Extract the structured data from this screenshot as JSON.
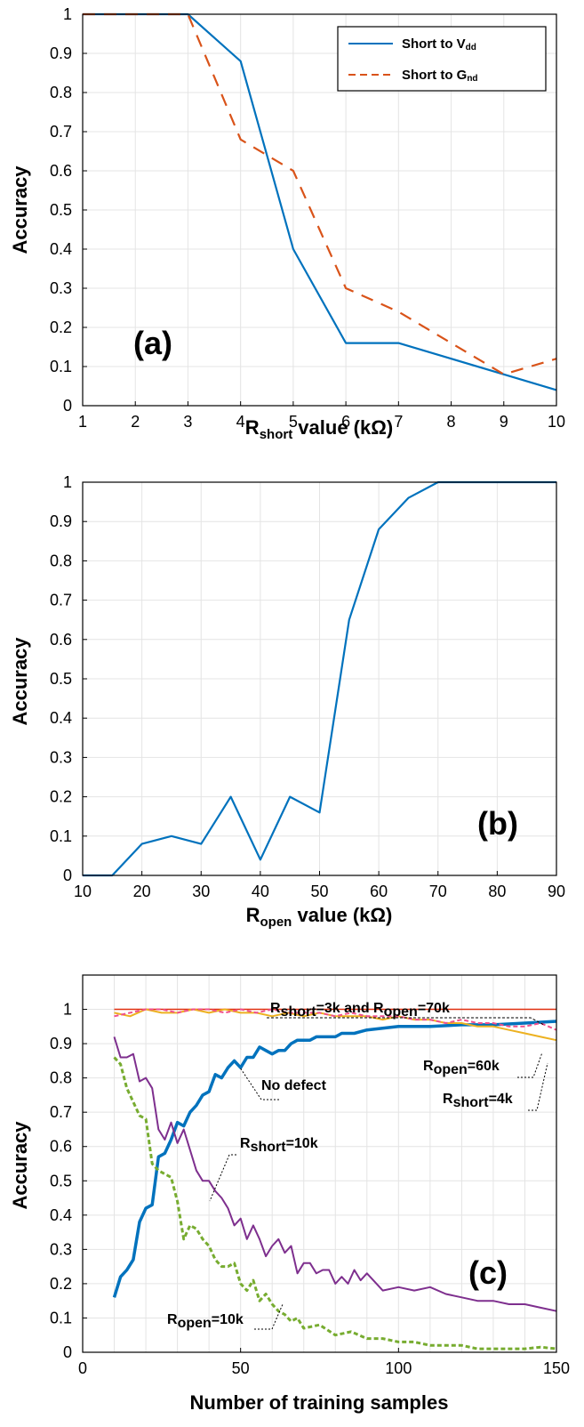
{
  "colors": {
    "blue": "#0072BD",
    "orange": "#D95319",
    "purple": "#7E2F8E",
    "green": "#77AC30",
    "yellow": "#EDB120",
    "pink": "#F0508C",
    "red": "#E03010"
  },
  "chart_data": [
    {
      "type": "line",
      "tag": "(a)",
      "xlabel": {
        "main": "R",
        "sub": "short",
        "rest": " value (kΩ)"
      },
      "ylabel": "Accuracy",
      "xlim": [
        1,
        10
      ],
      "ylim": [
        0,
        1
      ],
      "xticks": [
        "1",
        "2",
        "3",
        "4",
        "5",
        "6",
        "7",
        "8",
        "9",
        "10"
      ],
      "yticks": [
        "0",
        "0.1",
        "0.2",
        "0.3",
        "0.4",
        "0.5",
        "0.6",
        "0.7",
        "0.8",
        "0.9",
        "1"
      ],
      "grid": true,
      "legend_position": "top-right",
      "series": [
        {
          "name_main": "Short to V",
          "name_sub": "dd",
          "color": "#0072BD",
          "dash": "solid",
          "x": [
            1,
            2,
            3,
            4,
            5,
            6,
            7,
            8,
            9,
            10
          ],
          "y": [
            1,
            1,
            1,
            0.88,
            0.4,
            0.16,
            0.16,
            0.12,
            0.08,
            0.04
          ]
        },
        {
          "name_main": "Short to G",
          "name_sub": "nd",
          "color": "#D95319",
          "dash": "dashed",
          "x": [
            1,
            2,
            3,
            4,
            5,
            6,
            7,
            8,
            9,
            10
          ],
          "y": [
            1,
            1,
            1,
            0.68,
            0.6,
            0.3,
            0.24,
            0.16,
            0.08,
            0.12
          ]
        }
      ]
    },
    {
      "type": "line",
      "tag": "(b)",
      "xlabel": {
        "main": "R",
        "sub": "open",
        "rest": " value (kΩ)"
      },
      "ylabel": "Accuracy",
      "xlim": [
        10,
        90
      ],
      "ylim": [
        0,
        1
      ],
      "xticks": [
        "10",
        "20",
        "30",
        "40",
        "50",
        "60",
        "70",
        "80",
        "90"
      ],
      "yticks": [
        "0",
        "0.1",
        "0.2",
        "0.3",
        "0.4",
        "0.5",
        "0.6",
        "0.7",
        "0.8",
        "0.9",
        "1"
      ],
      "grid": true,
      "series": [
        {
          "color": "#0072BD",
          "dash": "solid",
          "x": [
            10,
            15,
            20,
            25,
            30,
            35,
            40,
            45,
            50,
            55,
            60,
            65,
            70,
            75,
            80,
            85,
            90
          ],
          "y": [
            0,
            0,
            0.08,
            0.1,
            0.08,
            0.2,
            0.04,
            0.2,
            0.16,
            0.65,
            0.88,
            0.96,
            1,
            1,
            1,
            1,
            1
          ]
        }
      ]
    },
    {
      "type": "line",
      "tag": "(c)",
      "xlabel": "Number of training samples",
      "ylabel": "Accuracy",
      "xlim": [
        0,
        150
      ],
      "ylim": [
        0,
        1.1
      ],
      "xticks": [
        "0",
        "50",
        "100",
        "150"
      ],
      "yticks": [
        "0",
        "0.1",
        "0.2",
        "0.3",
        "0.4",
        "0.5",
        "0.6",
        "0.7",
        "0.8",
        "0.9",
        "1"
      ],
      "grid": true,
      "series": [
        {
          "label": "No defect",
          "color": "#0072BD",
          "dash": "solid",
          "width": 3.5,
          "x": [
            10,
            12,
            14,
            16,
            18,
            20,
            22,
            24,
            26,
            28,
            30,
            32,
            34,
            36,
            38,
            40,
            42,
            44,
            46,
            48,
            50,
            52,
            54,
            56,
            58,
            60,
            62,
            64,
            66,
            68,
            70,
            72,
            74,
            76,
            78,
            80,
            82,
            84,
            86,
            88,
            90,
            95,
            100,
            110,
            120,
            130,
            140,
            150
          ],
          "y": [
            0.16,
            0.22,
            0.24,
            0.27,
            0.38,
            0.42,
            0.43,
            0.57,
            0.58,
            0.62,
            0.67,
            0.66,
            0.7,
            0.72,
            0.75,
            0.76,
            0.81,
            0.8,
            0.83,
            0.85,
            0.83,
            0.86,
            0.86,
            0.89,
            0.88,
            0.87,
            0.88,
            0.88,
            0.9,
            0.91,
            0.91,
            0.91,
            0.92,
            0.92,
            0.92,
            0.92,
            0.93,
            0.93,
            0.93,
            0.935,
            0.94,
            0.945,
            0.95,
            0.95,
            0.955,
            0.955,
            0.96,
            0.965
          ]
        },
        {
          "label": "Rshort=10k",
          "color": "#7E2F8E",
          "dash": "solid",
          "width": 2,
          "x": [
            10,
            12,
            14,
            16,
            18,
            20,
            22,
            24,
            26,
            28,
            30,
            32,
            34,
            36,
            38,
            40,
            42,
            44,
            46,
            48,
            50,
            52,
            54,
            56,
            58,
            60,
            62,
            64,
            66,
            68,
            70,
            72,
            74,
            76,
            78,
            80,
            82,
            84,
            86,
            88,
            90,
            95,
            100,
            105,
            110,
            115,
            120,
            125,
            130,
            135,
            140,
            145,
            150
          ],
          "y": [
            0.92,
            0.86,
            0.86,
            0.87,
            0.79,
            0.8,
            0.77,
            0.65,
            0.62,
            0.67,
            0.61,
            0.65,
            0.59,
            0.53,
            0.5,
            0.5,
            0.47,
            0.45,
            0.42,
            0.37,
            0.39,
            0.33,
            0.37,
            0.33,
            0.28,
            0.31,
            0.33,
            0.29,
            0.31,
            0.23,
            0.26,
            0.26,
            0.23,
            0.24,
            0.24,
            0.2,
            0.22,
            0.2,
            0.24,
            0.21,
            0.23,
            0.18,
            0.19,
            0.18,
            0.19,
            0.17,
            0.16,
            0.15,
            0.15,
            0.14,
            0.14,
            0.13,
            0.12
          ]
        },
        {
          "label": "Ropen=10k",
          "color": "#77AC30",
          "dash": "dashed",
          "width": 3,
          "x": [
            10,
            12,
            14,
            16,
            18,
            20,
            22,
            24,
            26,
            28,
            30,
            32,
            34,
            36,
            38,
            40,
            42,
            44,
            46,
            48,
            50,
            52,
            54,
            56,
            58,
            60,
            62,
            64,
            66,
            68,
            70,
            75,
            80,
            85,
            90,
            95,
            100,
            105,
            110,
            115,
            120,
            125,
            130,
            135,
            140,
            145,
            150
          ],
          "y": [
            0.86,
            0.84,
            0.77,
            0.73,
            0.69,
            0.68,
            0.55,
            0.53,
            0.52,
            0.51,
            0.44,
            0.33,
            0.37,
            0.36,
            0.33,
            0.31,
            0.27,
            0.25,
            0.25,
            0.26,
            0.2,
            0.18,
            0.21,
            0.15,
            0.17,
            0.14,
            0.12,
            0.11,
            0.09,
            0.1,
            0.07,
            0.08,
            0.05,
            0.06,
            0.04,
            0.04,
            0.03,
            0.03,
            0.02,
            0.02,
            0.02,
            0.01,
            0.01,
            0.01,
            0.01,
            0.015,
            0.01
          ]
        },
        {
          "label": "Rshort=3k and Ropen=70k",
          "color": "#E03010",
          "dash": "solid",
          "width": 1.5,
          "x": [
            10,
            150
          ],
          "y": [
            1,
            1
          ]
        },
        {
          "label": "Ropen=60k",
          "color": "#EDB120",
          "dash": "solid",
          "width": 2,
          "x": [
            10,
            15,
            20,
            25,
            30,
            35,
            40,
            45,
            50,
            55,
            60,
            65,
            70,
            75,
            80,
            85,
            90,
            95,
            100,
            105,
            110,
            115,
            120,
            125,
            130,
            135,
            140,
            145,
            150
          ],
          "y": [
            0.99,
            0.98,
            1,
            0.99,
            0.99,
            1,
            0.99,
            1,
            0.99,
            0.99,
            0.98,
            0.99,
            0.98,
            0.99,
            0.98,
            0.98,
            0.98,
            0.97,
            0.98,
            0.97,
            0.97,
            0.96,
            0.96,
            0.95,
            0.95,
            0.94,
            0.93,
            0.92,
            0.91
          ]
        },
        {
          "label": "Rshort=4k",
          "color": "#F0508C",
          "dash": "dashed",
          "width": 2,
          "x": [
            10,
            15,
            20,
            25,
            30,
            35,
            40,
            45,
            50,
            55,
            60,
            65,
            70,
            75,
            80,
            85,
            90,
            95,
            100,
            105,
            110,
            115,
            120,
            125,
            130,
            135,
            140,
            145,
            150
          ],
          "y": [
            0.98,
            0.99,
            1,
            1,
            0.99,
            1,
            1,
            0.99,
            1,
            0.99,
            1,
            0.99,
            0.99,
            0.99,
            0.98,
            0.99,
            0.98,
            0.98,
            0.98,
            0.97,
            0.97,
            0.96,
            0.97,
            0.96,
            0.96,
            0.95,
            0.95,
            0.96,
            0.94
          ]
        }
      ],
      "annotations": {
        "top": {
          "main": "R",
          "sub": "short",
          "mid": "=3k and R",
          "sub2": "open",
          "end": "=70k"
        },
        "ropen60": {
          "main": "R",
          "sub": "open",
          "end": "=60k"
        },
        "nodefect": "No defect",
        "rshort4": {
          "main": "R",
          "sub": "short",
          "end": "=4k"
        },
        "rshort10": {
          "main": "R",
          "sub": "short",
          "end": "=10k"
        },
        "ropen10": {
          "main": "R",
          "sub": "open",
          "end": "=10k"
        }
      }
    }
  ]
}
